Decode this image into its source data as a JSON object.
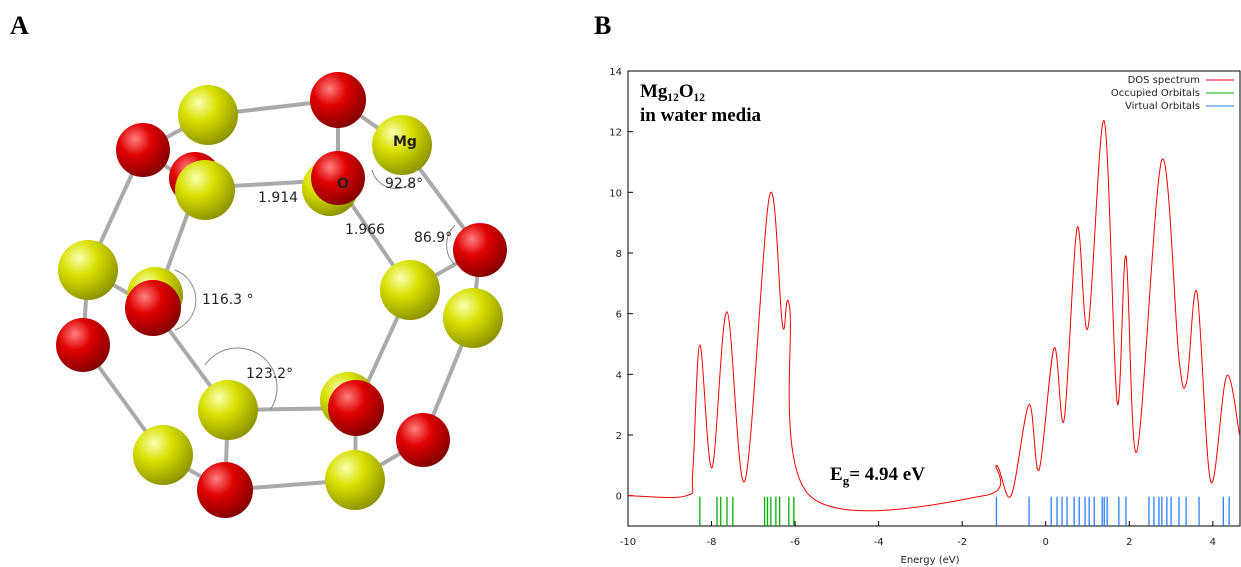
{
  "panel_labels": [
    "A",
    "B"
  ],
  "molecule": {
    "labels": [
      "Mg",
      "O",
      "1.914",
      "1.966",
      "92.8°",
      "86.9°",
      "116.3 °",
      "123.2°"
    ]
  },
  "chart_data": {
    "type": "line",
    "x_label": "Energy (eV)",
    "annotations": {
      "formula": "Mg₁₂O₁₂",
      "medium": "in water media",
      "gap": [
        "E",
        "g",
        "= 4.94 eV"
      ]
    },
    "xlim": [
      -10,
      4.65
    ],
    "ylim": [
      -1,
      14
    ],
    "xticks": [
      -10,
      -8,
      -6,
      -4,
      -2,
      0,
      2,
      4
    ],
    "yticks": [
      0,
      2,
      4,
      6,
      8,
      10,
      12,
      14
    ],
    "legend": "top-right",
    "series": [
      {
        "name": "DOS spectrum",
        "color": "#ff0000",
        "x": [
          -10,
          -8.6,
          -8.45,
          -8.28,
          -7.99,
          -7.63,
          -7.2,
          -6.61,
          -6.3,
          -6.13,
          -5.65,
          -1.47,
          -1.18,
          -0.83,
          -0.4,
          -0.16,
          0.2,
          0.44,
          0.75,
          1.01,
          1.4,
          1.71,
          1.92,
          2.18,
          2.78,
          3.19,
          3.38,
          3.62,
          3.95,
          4.33,
          4.64
        ],
        "values": [
          0,
          0,
          0.8,
          4.97,
          0.92,
          6.06,
          0.5,
          9.9,
          5.6,
          6.2,
          0,
          0,
          1.0,
          0,
          3.0,
          0.85,
          4.87,
          2.5,
          8.83,
          5.53,
          12.35,
          3.06,
          7.9,
          1.45,
          11.07,
          4.5,
          3.8,
          6.7,
          0.46,
          3.95,
          2.0
        ]
      },
      {
        "name": "Occupied Orbitals",
        "color": "#00b000",
        "x": [
          -8.28,
          -7.87,
          -7.78,
          -7.63,
          -7.49,
          -6.73,
          -6.66,
          -6.58,
          -6.46,
          -6.37,
          -6.15,
          -6.03
        ]
      },
      {
        "name": "Virtual Orbitals",
        "color": "#2a7fff",
        "x": [
          -1.18,
          -0.4,
          0.13,
          0.27,
          0.39,
          0.51,
          0.68,
          0.8,
          0.94,
          1.04,
          1.16,
          1.35,
          1.4,
          1.47,
          1.75,
          1.92,
          2.47,
          2.59,
          2.71,
          2.78,
          2.9,
          3.0,
          3.19,
          3.36,
          3.67,
          4.25,
          4.39
        ]
      }
    ]
  }
}
